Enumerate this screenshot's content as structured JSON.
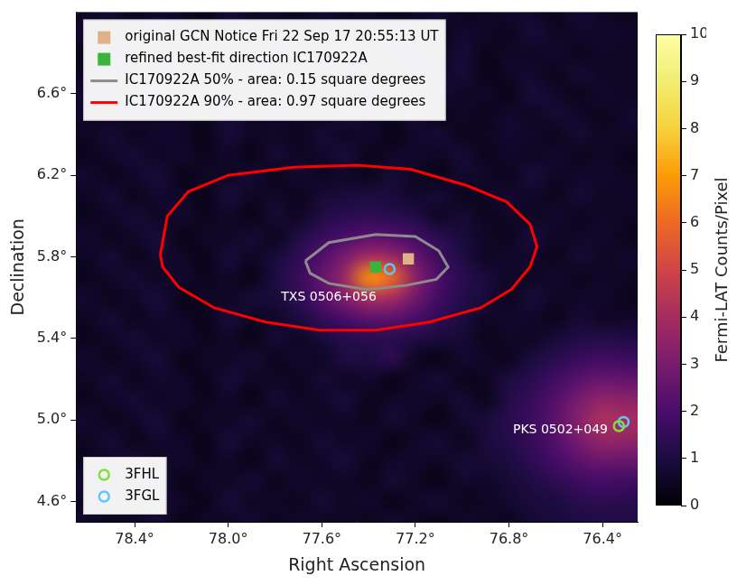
{
  "chart_data": {
    "type": "heatmap",
    "xlabel": "Right Ascension",
    "ylabel": "Declination",
    "xlim": [
      78.65,
      76.25
    ],
    "xticks": [
      {
        "value": 78.4,
        "label": "78.4°"
      },
      {
        "value": 78.0,
        "label": "78.0°"
      },
      {
        "value": 77.6,
        "label": "77.6°"
      },
      {
        "value": 77.2,
        "label": "77.2°"
      },
      {
        "value": 76.8,
        "label": "76.8°"
      },
      {
        "value": 76.4,
        "label": "76.4°"
      }
    ],
    "ylim": [
      4.5,
      7.0
    ],
    "yticks": [
      {
        "value": 4.6,
        "label": "4.6°"
      },
      {
        "value": 5.0,
        "label": "5.0°"
      },
      {
        "value": 5.4,
        "label": "5.4°"
      },
      {
        "value": 5.8,
        "label": "5.8°"
      },
      {
        "value": 6.2,
        "label": "6.2°"
      },
      {
        "value": 6.6,
        "label": "6.6°"
      }
    ],
    "grid": false,
    "legend": "upper left",
    "series": [
      {
        "name": "original GCN Notice Fri 22 Sep 17 20:55:13 UT",
        "type": "scatter",
        "marker": "square",
        "color": "#deb189",
        "x": [
          77.23
        ],
        "y": [
          5.79
        ]
      },
      {
        "name": "refined best-fit direction IC170922A",
        "type": "scatter",
        "marker": "square",
        "color": "#3cb43c",
        "x": [
          77.37
        ],
        "y": [
          5.75
        ]
      },
      {
        "name": "IC170922A 50% - area: 0.15 square degrees",
        "type": "line",
        "line_style": "solid",
        "color": "#8c8c8c",
        "x": [
          77.67,
          77.57,
          77.37,
          77.2,
          77.1,
          77.06,
          77.11,
          77.24,
          77.41,
          77.57,
          77.65,
          77.67
        ],
        "y": [
          5.78,
          5.87,
          5.91,
          5.9,
          5.83,
          5.75,
          5.69,
          5.66,
          5.64,
          5.67,
          5.72,
          5.78
        ]
      },
      {
        "name": "IC170922A 90% - area: 0.97 square degrees",
        "type": "line",
        "line_style": "solid",
        "color": "#ff0000",
        "x": [
          78.29,
          78.26,
          78.17,
          78.0,
          77.72,
          77.45,
          77.22,
          76.98,
          76.81,
          76.71,
          76.68,
          76.71,
          76.79,
          76.92,
          77.14,
          77.37,
          77.61,
          77.84,
          78.06,
          78.21,
          78.28,
          78.29
        ],
        "y": [
          5.81,
          6.0,
          6.12,
          6.2,
          6.24,
          6.25,
          6.23,
          6.15,
          6.07,
          5.96,
          5.85,
          5.75,
          5.64,
          5.55,
          5.48,
          5.44,
          5.44,
          5.48,
          5.55,
          5.65,
          5.75,
          5.81
        ]
      },
      {
        "name": "3FHL",
        "type": "scatter",
        "marker": "circle",
        "color": "#80e040",
        "legend": "lower left",
        "x": [
          76.33
        ],
        "y": [
          4.97
        ]
      },
      {
        "name": "3FGL",
        "type": "scatter",
        "marker": "circle",
        "color": "#5bc8f5",
        "legend": "lower left",
        "x": [
          77.31,
          76.31
        ],
        "y": [
          5.74,
          4.99
        ]
      }
    ],
    "annotations": [
      {
        "text": "TXS 0506+056",
        "x": 77.57,
        "y": 5.6
      },
      {
        "text": "PKS 0502+049",
        "x": 76.58,
        "y": 4.95
      }
    ],
    "heatmap": {
      "x": [
        78.6,
        78.5,
        78.4,
        78.3,
        78.2,
        78.1,
        78.0,
        77.9,
        77.8,
        77.7,
        77.6,
        77.5,
        77.4,
        77.3,
        77.2,
        77.1,
        77.0,
        76.9,
        76.8,
        76.7,
        76.6,
        76.5,
        76.4,
        76.3
      ],
      "y": [
        4.5,
        4.6,
        4.7,
        4.8,
        4.9,
        5.0,
        5.1,
        5.2,
        5.3,
        5.4,
        5.5,
        5.6,
        5.7,
        5.8,
        5.9,
        6.0,
        6.1,
        6.2,
        6.3,
        6.4,
        6.5,
        6.6,
        6.7,
        6.8,
        6.9,
        7.0
      ],
      "cells": [
        [
          0.7,
          0.4,
          0.6,
          0.9,
          0.3,
          0.6,
          0.5,
          0.8,
          0.4,
          0.7,
          0.5,
          0.6,
          0.4,
          0.8,
          0.5,
          0.3,
          0.7,
          0.6,
          0.4,
          0.8,
          0.9,
          1.0,
          1.1,
          1.1
        ],
        [
          0.5,
          0.8,
          0.4,
          0.7,
          0.6,
          0.3,
          0.9,
          0.5,
          0.6,
          0.4,
          0.8,
          0.5,
          0.7,
          0.3,
          0.6,
          0.8,
          0.4,
          0.5,
          0.7,
          0.9,
          1.0,
          1.3,
          1.4,
          1.3
        ],
        [
          0.7,
          0.4,
          0.6,
          0.9,
          0.3,
          0.6,
          0.5,
          0.8,
          0.4,
          0.7,
          0.5,
          0.6,
          0.4,
          0.8,
          0.5,
          0.3,
          0.7,
          0.6,
          0.8,
          1.1,
          1.4,
          1.7,
          1.9,
          1.8
        ],
        [
          0.4,
          0.6,
          0.8,
          0.5,
          0.7,
          0.4,
          0.6,
          0.3,
          0.8,
          0.5,
          0.6,
          0.9,
          0.4,
          0.6,
          0.7,
          0.5,
          0.8,
          0.8,
          1.0,
          1.4,
          1.9,
          2.4,
          2.7,
          2.6
        ],
        [
          0.5,
          0.8,
          0.4,
          0.7,
          0.6,
          0.3,
          0.9,
          0.5,
          0.6,
          0.4,
          0.8,
          0.5,
          0.7,
          0.3,
          0.6,
          0.8,
          0.4,
          0.9,
          1.2,
          1.6,
          2.2,
          3.0,
          3.6,
          3.5
        ],
        [
          0.7,
          0.4,
          0.6,
          0.9,
          0.3,
          0.6,
          0.5,
          0.8,
          0.4,
          0.7,
          0.5,
          0.6,
          0.4,
          0.8,
          0.5,
          0.3,
          0.7,
          0.9,
          1.3,
          1.7,
          2.4,
          3.3,
          4.2,
          4.0
        ],
        [
          0.4,
          0.6,
          0.8,
          0.5,
          0.7,
          0.4,
          0.6,
          0.3,
          0.8,
          0.5,
          0.6,
          0.9,
          0.4,
          0.6,
          0.7,
          0.5,
          0.8,
          0.4,
          1.2,
          1.6,
          2.2,
          3.0,
          3.5,
          3.4
        ],
        [
          0.5,
          0.8,
          0.4,
          0.7,
          0.6,
          0.3,
          0.9,
          0.5,
          0.6,
          0.4,
          0.8,
          0.5,
          0.7,
          0.3,
          0.6,
          0.8,
          0.4,
          0.5,
          1.0,
          1.3,
          1.8,
          2.3,
          2.6,
          2.5
        ],
        [
          0.7,
          0.4,
          0.6,
          0.9,
          0.3,
          0.6,
          0.5,
          0.8,
          0.4,
          0.7,
          0.5,
          1.1,
          1.0,
          1.4,
          0.5,
          0.3,
          0.7,
          0.6,
          0.4,
          1.0,
          1.3,
          1.6,
          1.8,
          1.7
        ],
        [
          0.4,
          0.6,
          0.8,
          0.5,
          0.7,
          0.4,
          0.6,
          0.3,
          0.8,
          0.5,
          0.9,
          1.2,
          1.3,
          1.3,
          1.1,
          0.9,
          0.8,
          0.4,
          0.6,
          0.5,
          0.9,
          1.1,
          1.2,
          1.1
        ],
        [
          0.5,
          0.8,
          0.4,
          0.7,
          0.6,
          0.3,
          0.9,
          0.5,
          0.6,
          1.0,
          1.5,
          2.0,
          2.4,
          2.4,
          2.0,
          1.4,
          1.0,
          0.5,
          0.7,
          0.6,
          0.4,
          0.8,
          0.5,
          0.6
        ],
        [
          0.7,
          0.4,
          0.6,
          0.9,
          0.3,
          0.6,
          0.5,
          0.8,
          0.9,
          1.4,
          2.2,
          3.2,
          4.2,
          4.0,
          2.8,
          1.8,
          1.2,
          0.9,
          0.4,
          0.9,
          0.5,
          0.6,
          0.7,
          0.4
        ],
        [
          0.4,
          0.6,
          0.8,
          0.5,
          0.7,
          0.4,
          0.6,
          0.3,
          1.0,
          1.6,
          2.5,
          3.8,
          6.8,
          6.0,
          3.4,
          2.0,
          1.3,
          0.9,
          0.6,
          0.5,
          0.7,
          0.4,
          0.6,
          0.5
        ],
        [
          0.5,
          0.8,
          0.4,
          0.7,
          0.6,
          0.3,
          0.9,
          0.5,
          0.9,
          1.4,
          2.2,
          3.0,
          4.0,
          3.8,
          2.6,
          1.7,
          1.1,
          0.5,
          0.7,
          0.6,
          0.4,
          0.8,
          0.5,
          0.7
        ],
        [
          0.7,
          0.4,
          0.6,
          0.9,
          0.3,
          0.6,
          0.5,
          0.8,
          0.4,
          1.1,
          1.6,
          2.0,
          2.3,
          2.2,
          1.8,
          1.3,
          0.9,
          0.6,
          0.4,
          0.9,
          0.5,
          0.6,
          0.7,
          0.4
        ],
        [
          0.4,
          0.6,
          0.8,
          0.5,
          0.7,
          0.4,
          0.6,
          0.3,
          0.8,
          0.5,
          1.1,
          1.3,
          1.4,
          1.3,
          1.1,
          0.5,
          0.8,
          0.4,
          0.6,
          0.5,
          0.7,
          0.4,
          0.6,
          0.5
        ],
        [
          0.5,
          0.8,
          0.4,
          0.7,
          0.6,
          0.3,
          0.9,
          0.5,
          0.6,
          0.4,
          0.8,
          0.9,
          1.0,
          0.9,
          0.6,
          0.8,
          0.4,
          0.5,
          0.7,
          0.6,
          0.4,
          0.8,
          0.5,
          0.6
        ],
        [
          0.7,
          0.4,
          0.6,
          0.9,
          0.3,
          0.6,
          0.5,
          0.8,
          0.4,
          0.7,
          0.5,
          0.6,
          0.4,
          0.8,
          0.5,
          0.3,
          0.7,
          0.6,
          0.4,
          0.9,
          0.5,
          0.6,
          0.7,
          0.5
        ],
        [
          0.4,
          0.6,
          0.8,
          0.5,
          0.7,
          0.4,
          0.6,
          0.3,
          0.8,
          0.5,
          0.6,
          0.9,
          0.4,
          0.6,
          0.7,
          0.5,
          0.8,
          0.4,
          0.6,
          0.5,
          0.7,
          0.4,
          0.6,
          0.4
        ],
        [
          0.5,
          0.8,
          0.4,
          0.7,
          0.6,
          0.3,
          0.9,
          0.5,
          0.6,
          0.4,
          0.8,
          0.5,
          0.7,
          0.3,
          0.6,
          0.8,
          0.4,
          0.5,
          0.7,
          0.6,
          0.4,
          0.8,
          0.5,
          0.6
        ],
        [
          0.6,
          0.4,
          0.7,
          0.5,
          0.6,
          0.4,
          0.8,
          0.5,
          0.7,
          0.6,
          0.4,
          0.9,
          0.6,
          0.5,
          0.8,
          0.3,
          0.6,
          0.4,
          0.7,
          0.5,
          0.8,
          0.6,
          0.4,
          0.7
        ],
        [
          0.7,
          0.6,
          0.5,
          0.9,
          0.4,
          0.6,
          0.7,
          0.3,
          0.5,
          0.8,
          0.4,
          0.6,
          0.5,
          0.7,
          0.4,
          0.8,
          0.5,
          0.6,
          0.3,
          0.9,
          0.6,
          0.4,
          0.7,
          0.5
        ],
        [
          0.5,
          0.8,
          0.4,
          0.6,
          0.7,
          0.5,
          0.4,
          0.8,
          0.6,
          0.3,
          0.7,
          0.5,
          0.8,
          0.4,
          0.6,
          0.5,
          0.9,
          0.3,
          0.6,
          0.7,
          0.4,
          0.8,
          0.5,
          0.6
        ],
        [
          0.4,
          0.6,
          0.8,
          0.5,
          0.7,
          0.4,
          0.6,
          0.3,
          0.8,
          0.5,
          0.6,
          0.9,
          0.4,
          0.6,
          0.7,
          0.5,
          0.8,
          0.4,
          0.6,
          0.5,
          0.7,
          0.4,
          0.6,
          0.5
        ],
        [
          0.7,
          0.4,
          0.6,
          0.9,
          0.3,
          0.6,
          0.5,
          0.8,
          0.4,
          0.7,
          0.5,
          0.6,
          0.4,
          0.8,
          0.5,
          0.3,
          0.7,
          0.6,
          0.4,
          0.9,
          0.5,
          0.6,
          0.7,
          0.6
        ],
        [
          0.5,
          0.8,
          0.4,
          0.7,
          0.6,
          0.3,
          0.9,
          0.5,
          0.6,
          0.4,
          0.8,
          0.5,
          0.7,
          0.3,
          0.6,
          0.8,
          0.4,
          0.5,
          0.7,
          0.6,
          0.4,
          0.8,
          0.5,
          0.4
        ]
      ],
      "colorbar": {
        "label": "Fermi-LAT Counts/Pixel",
        "range": [
          0,
          10
        ],
        "ticks": [
          0,
          1,
          2,
          3,
          4,
          5,
          6,
          7,
          8,
          9,
          10
        ]
      }
    }
  }
}
